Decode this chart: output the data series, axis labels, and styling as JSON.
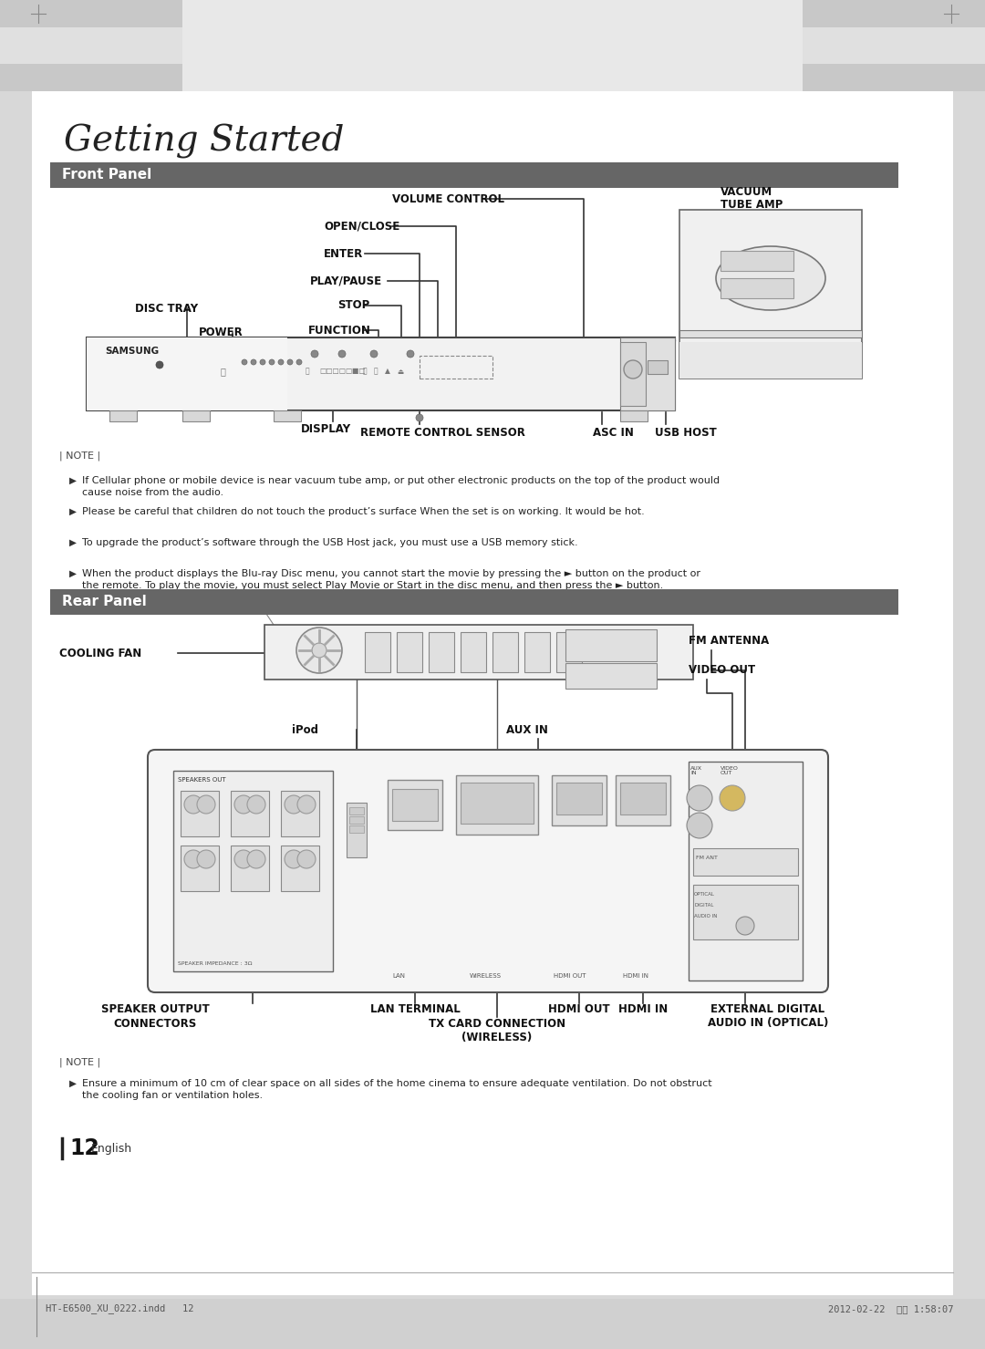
{
  "page_bg": "#d8d8d8",
  "content_bg": "#ffffff",
  "title_italic": "Getting Started",
  "section_bg": "#666666",
  "section_text_color": "#ffffff",
  "front_panel_title": "Front Panel",
  "rear_panel_title": "Rear Panel",
  "note_front": [
    "If Cellular phone or mobile device is near vacuum tube amp, or put other electronic products on the top of the product would\ncause noise from the audio.",
    "Please be careful that children do not touch the product’s surface When the set is on working. It would be hot.",
    "To upgrade the product’s software through the USB Host jack, you must use a USB memory stick.",
    "When the product displays the Blu-ray Disc menu, you cannot start the movie by pressing the ► button on the product or\nthe remote. To play the movie, you must select Play Movie or Start in the disc menu, and then press the ► button."
  ],
  "note_rear": [
    "Ensure a minimum of 10 cm of clear space on all sides of the home cinema to ensure adequate ventilation. Do not obstruct\nthe cooling fan or ventilation holes."
  ],
  "footer_left": "HT-E6500_XU_0222.indd   12",
  "footer_right": "2012-02-22  오후 1:58:07",
  "page_number": "12",
  "line_color": "#333333"
}
